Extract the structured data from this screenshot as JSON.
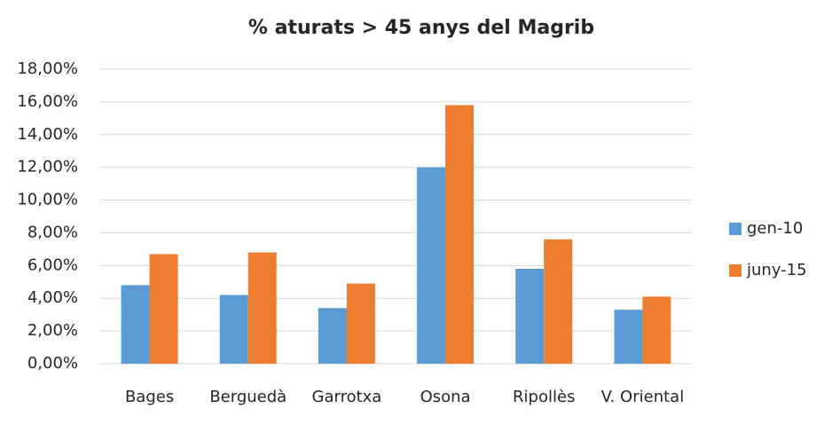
{
  "chart_data": {
    "type": "bar",
    "title": "% aturats > 45 anys del Magrib",
    "categories": [
      "Bages",
      "Berguedà",
      "Garrotxa",
      "Osona",
      "Ripollès",
      "V. Oriental"
    ],
    "series": [
      {
        "name": "gen-10",
        "color": "#5b9bd5",
        "values": [
          4.8,
          4.2,
          3.4,
          12.0,
          5.8,
          3.3
        ]
      },
      {
        "name": "juny-15",
        "color": "#ed7d31",
        "values": [
          6.7,
          6.8,
          4.9,
          15.8,
          7.6,
          4.1
        ]
      }
    ],
    "ylim": [
      0,
      18
    ],
    "yticks": [
      {
        "value": 0,
        "label": "0,00%"
      },
      {
        "value": 2,
        "label": "2,00%"
      },
      {
        "value": 4,
        "label": "4,00%"
      },
      {
        "value": 6,
        "label": "6,00%"
      },
      {
        "value": 8,
        "label": "8,00%"
      },
      {
        "value": 10,
        "label": "10,00%"
      },
      {
        "value": 12,
        "label": "12,00%"
      },
      {
        "value": 14,
        "label": "14,00%"
      },
      {
        "value": 16,
        "label": "16,00%"
      },
      {
        "value": 18,
        "label": "18,00%"
      }
    ],
    "grid": true,
    "legend": "right"
  }
}
